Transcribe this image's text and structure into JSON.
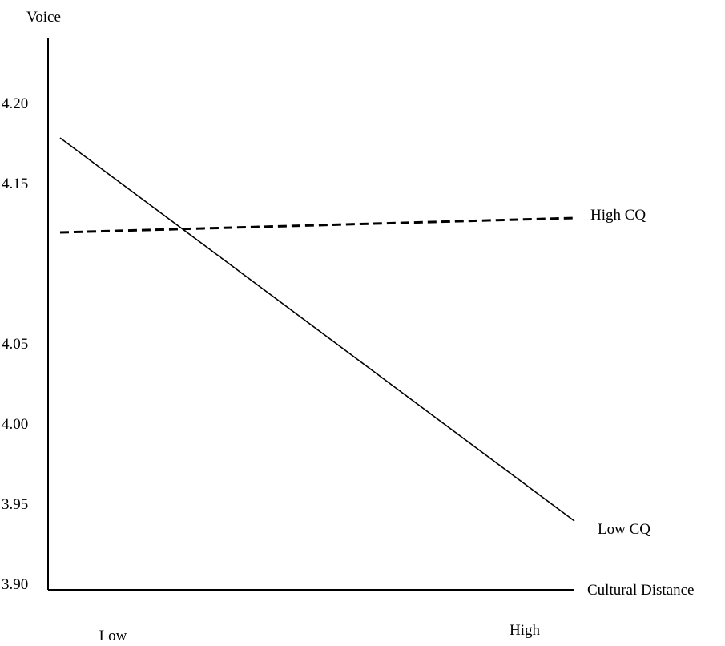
{
  "chart_data": {
    "type": "line",
    "ylabel": "Voice",
    "xlabel": "Cultural Distance",
    "categories": [
      "Low",
      "High"
    ],
    "y_ticks": [
      "4.20",
      "4.15",
      "4.05",
      "4.00",
      "3.95",
      "3.90"
    ],
    "y_tick_values": [
      4.2,
      4.15,
      4.05,
      4.0,
      3.95,
      3.9
    ],
    "series": [
      {
        "name": "High CQ",
        "values": [
          4.119,
          4.128
        ],
        "line_style": "dashed",
        "color": "#000000"
      },
      {
        "name": "Low CQ",
        "values": [
          4.178,
          3.939
        ],
        "line_style": "solid",
        "color": "#000000"
      }
    ],
    "grid": false,
    "legend": "inline-right"
  }
}
